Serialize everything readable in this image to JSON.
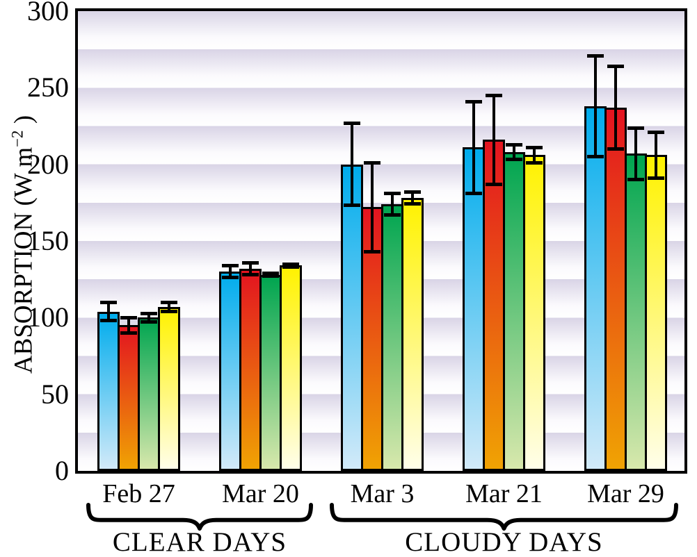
{
  "figure": {
    "y_axis": {
      "title_prefix": "ABSORPTION (W m",
      "title_sup": "−2",
      "title_suffix": " )"
    }
  },
  "chart_data": {
    "type": "bar",
    "title": "",
    "ylabel": "ABSORPTION (W m^-2)",
    "ylim": [
      0,
      300
    ],
    "yticks": [
      0,
      50,
      100,
      150,
      200,
      250,
      300
    ],
    "grid": "horizontal lavender gradient bands every 25 units",
    "legend_position": "none",
    "error_bars": true,
    "background_band_color": "#d9d4e6",
    "categories": [
      "Feb 27",
      "Mar 20",
      "Mar 3",
      "Mar 21",
      "Mar 29"
    ],
    "category_groups": [
      {
        "label": "CLEAR DAYS",
        "categories": [
          "Feb 27",
          "Mar 20"
        ]
      },
      {
        "label": "CLOUDY DAYS",
        "categories": [
          "Mar 3",
          "Mar 21",
          "Mar 29"
        ]
      }
    ],
    "series": [
      {
        "name": "blue",
        "color_top": "#00ACEC",
        "color_bottom": "#D2EAF9",
        "values": [
          104,
          130,
          200,
          211,
          238
        ],
        "errors": [
          7,
          5,
          28,
          31,
          34
        ]
      },
      {
        "name": "red-orange",
        "color_top": "#E31420",
        "color_bottom": "#F0A303",
        "values": [
          95,
          132,
          172,
          216,
          237
        ],
        "errors": [
          6,
          5,
          30,
          30,
          28
        ]
      },
      {
        "name": "green",
        "color_top": "#00A550",
        "color_bottom": "#D8E8AC",
        "values": [
          100,
          128,
          174,
          208,
          207
        ],
        "errors": [
          4,
          2,
          8,
          6,
          18
        ]
      },
      {
        "name": "yellow",
        "color_top": "#FFF200",
        "color_bottom": "#FFFEE9",
        "values": [
          107,
          134,
          178,
          206,
          206
        ],
        "errors": [
          4,
          2,
          5,
          6,
          16
        ]
      }
    ]
  }
}
